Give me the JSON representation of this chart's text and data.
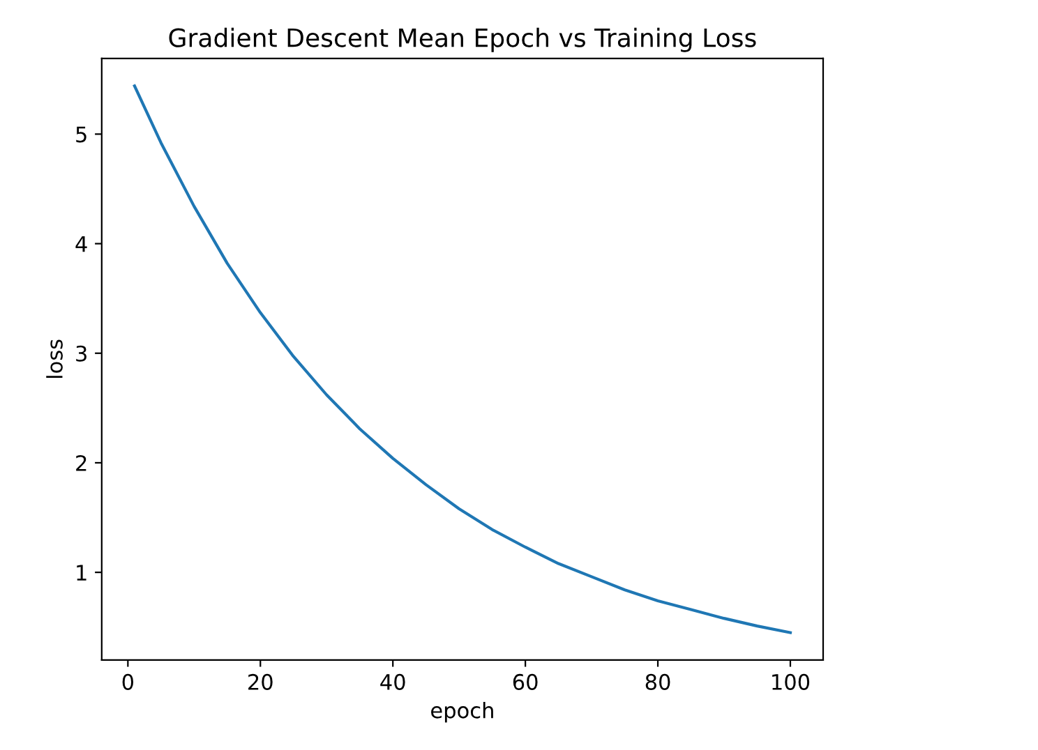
{
  "chart_data": {
    "type": "line",
    "title": "Gradient Descent Mean Epoch vs Training Loss",
    "xlabel": "epoch",
    "ylabel": "loss",
    "x": [
      1,
      5,
      10,
      15,
      20,
      25,
      30,
      35,
      40,
      45,
      50,
      55,
      60,
      65,
      70,
      75,
      80,
      85,
      90,
      95,
      100
    ],
    "series": [
      {
        "color": "#1f77b4",
        "values": [
          5.44,
          4.92,
          4.34,
          3.82,
          3.37,
          2.97,
          2.62,
          2.31,
          2.04,
          1.8,
          1.58,
          1.39,
          1.23,
          1.08,
          0.96,
          0.84,
          0.74,
          0.66,
          0.58,
          0.51,
          0.45
        ]
      }
    ],
    "xlim": [
      -3.95,
      104.95
    ],
    "ylim": [
      0.2,
      5.69
    ],
    "xticks": [
      0,
      20,
      40,
      60,
      80,
      100
    ],
    "yticks": [
      1,
      2,
      3,
      4,
      5
    ],
    "grid": false,
    "legend": false
  }
}
